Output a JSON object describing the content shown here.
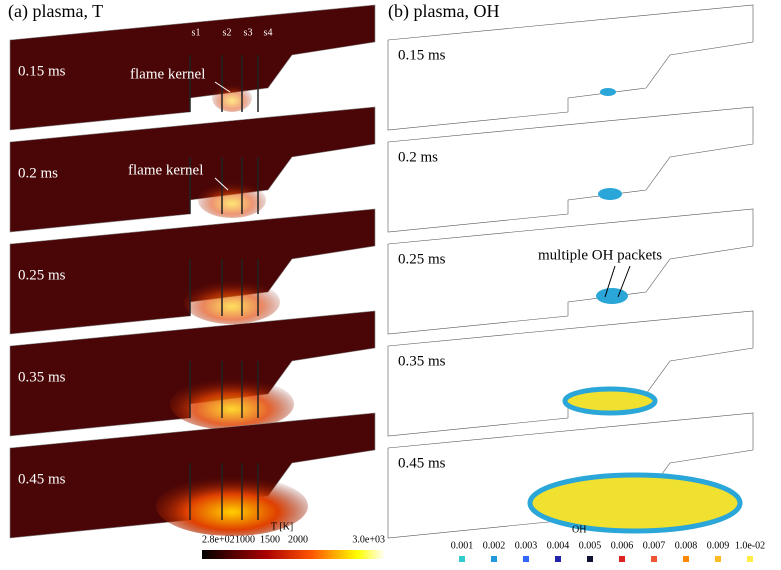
{
  "panel_a": {
    "title": "(a) plasma, T",
    "times": [
      "0.15 ms",
      "0.2 ms",
      "0.25 ms",
      "0.35 ms",
      "0.45 ms"
    ],
    "sections": [
      "s1",
      "s2",
      "s3",
      "s4"
    ],
    "annotations": [
      "flame kernel",
      "flame kernel"
    ]
  },
  "colorbar": {
    "label": "T [K]",
    "ticks": [
      "2.8e+02",
      "1000",
      "1500",
      "2000",
      "3.0e+03"
    ]
  },
  "panel_b": {
    "title": "(b) plasma, OH",
    "times": [
      "0.15 ms",
      "0.2 ms",
      "0.25 ms",
      "0.35 ms",
      "0.45 ms"
    ],
    "annotation": "multiple OH packets"
  },
  "oh_legend": {
    "label": "OH",
    "levels": [
      "0.001",
      "0.002",
      "0.003",
      "0.004",
      "0.005",
      "0.006",
      "0.007",
      "0.008",
      "0.009",
      "1.0e-02"
    ]
  }
}
